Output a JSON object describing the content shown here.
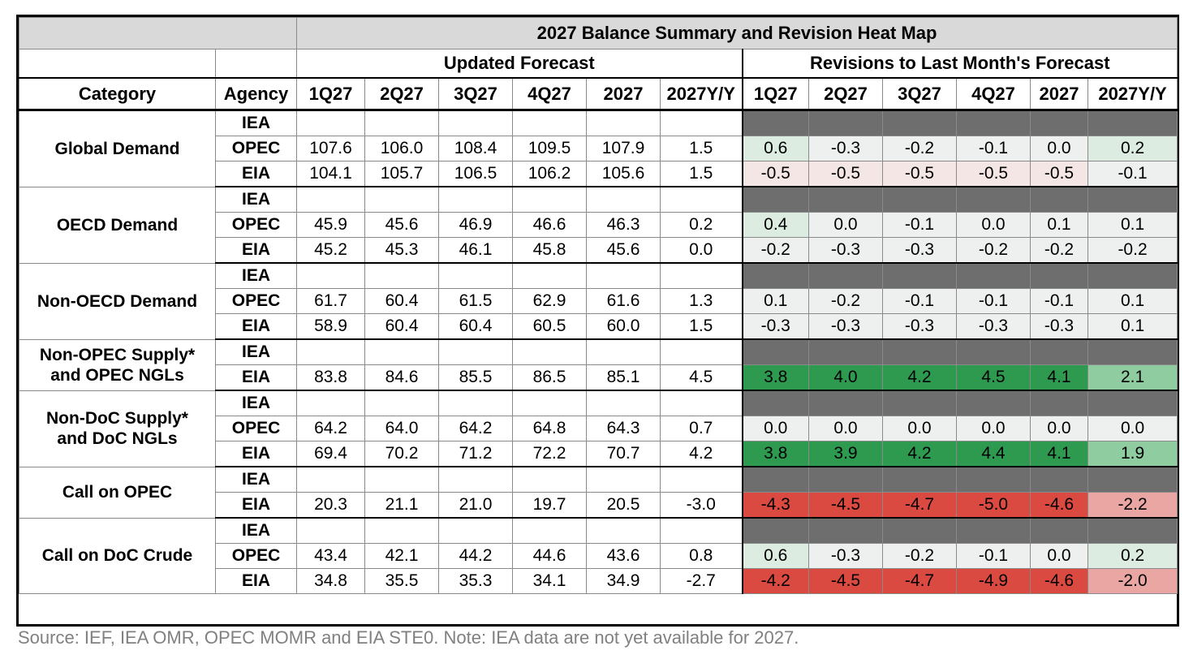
{
  "title": "2027 Balance Summary and Revision Heat Map",
  "groups": {
    "forecast": "Updated Forecast",
    "revisions": "Revisions to Last Month's Forecast"
  },
  "headers": {
    "category": "Category",
    "agency": "Agency",
    "periods": [
      "1Q27",
      "2Q27",
      "3Q27",
      "4Q27",
      "2027",
      "2027Y/Y"
    ]
  },
  "footer": "Source: IEF, IEA OMR, OPEC MOMR and EIA STE0. Note: IEA data are not yet available for 2027.",
  "colors": {
    "title_bg": "#d9d9d9",
    "na_revision_bg": "#6e6e6e",
    "strong_green": "#2e9a4f",
    "light_green": "#8fcc9f",
    "pale_green": "#dcece1",
    "neutral": "#eef0ef",
    "pale_red": "#f4e6e4",
    "strong_red": "#db4a40",
    "light_red": "#eaa6a2"
  },
  "chart_data": {
    "type": "heatmap",
    "title": "2027 Balance Summary and Revision Heat Map",
    "columns": [
      "1Q27",
      "2Q27",
      "3Q27",
      "4Q27",
      "2027",
      "2027Y/Y"
    ],
    "categories": [
      {
        "name": "Global Demand",
        "rows": [
          {
            "agency": "IEA",
            "forecast": [
              "",
              "",
              "",
              "",
              "",
              ""
            ],
            "revisions": null
          },
          {
            "agency": "OPEC",
            "forecast": [
              "107.6",
              "106.0",
              "108.4",
              "109.5",
              "107.9",
              "1.5"
            ],
            "revisions": [
              "0.6",
              "-0.3",
              "-0.2",
              "-0.1",
              "0.0",
              "0.2"
            ]
          },
          {
            "agency": "EIA",
            "forecast": [
              "104.1",
              "105.7",
              "106.5",
              "106.2",
              "105.6",
              "1.5"
            ],
            "revisions": [
              "-0.5",
              "-0.5",
              "-0.5",
              "-0.5",
              "-0.5",
              "-0.1"
            ]
          }
        ]
      },
      {
        "name": "OECD Demand",
        "rows": [
          {
            "agency": "IEA",
            "forecast": [
              "",
              "",
              "",
              "",
              "",
              ""
            ],
            "revisions": null
          },
          {
            "agency": "OPEC",
            "forecast": [
              "45.9",
              "45.6",
              "46.9",
              "46.6",
              "46.3",
              "0.2"
            ],
            "revisions": [
              "0.4",
              "0.0",
              "-0.1",
              "0.0",
              "0.1",
              "0.1"
            ]
          },
          {
            "agency": "EIA",
            "forecast": [
              "45.2",
              "45.3",
              "46.1",
              "45.8",
              "45.6",
              "0.0"
            ],
            "revisions": [
              "-0.2",
              "-0.3",
              "-0.3",
              "-0.2",
              "-0.2",
              "-0.2"
            ]
          }
        ]
      },
      {
        "name": "Non-OECD Demand",
        "rows": [
          {
            "agency": "IEA",
            "forecast": [
              "",
              "",
              "",
              "",
              "",
              ""
            ],
            "revisions": null
          },
          {
            "agency": "OPEC",
            "forecast": [
              "61.7",
              "60.4",
              "61.5",
              "62.9",
              "61.6",
              "1.3"
            ],
            "revisions": [
              "0.1",
              "-0.2",
              "-0.1",
              "-0.1",
              "-0.1",
              "0.1"
            ]
          },
          {
            "agency": "EIA",
            "forecast": [
              "58.9",
              "60.4",
              "60.4",
              "60.5",
              "60.0",
              "1.5"
            ],
            "revisions": [
              "-0.3",
              "-0.3",
              "-0.3",
              "-0.3",
              "-0.3",
              "0.1"
            ]
          }
        ]
      },
      {
        "name": "Non-OPEC Supply* and OPEC NGLs",
        "rows": [
          {
            "agency": "IEA",
            "forecast": [
              "",
              "",
              "",
              "",
              "",
              ""
            ],
            "revisions": null
          },
          {
            "agency": "EIA",
            "forecast": [
              "83.8",
              "84.6",
              "85.5",
              "86.5",
              "85.1",
              "4.5"
            ],
            "revisions": [
              "3.8",
              "4.0",
              "4.2",
              "4.5",
              "4.1",
              "2.1"
            ]
          }
        ]
      },
      {
        "name": "Non-DoC Supply* and DoC NGLs",
        "rows": [
          {
            "agency": "IEA",
            "forecast": [
              "",
              "",
              "",
              "",
              "",
              ""
            ],
            "revisions": null
          },
          {
            "agency": "OPEC",
            "forecast": [
              "64.2",
              "64.0",
              "64.2",
              "64.8",
              "64.3",
              "0.7"
            ],
            "revisions": [
              "0.0",
              "0.0",
              "0.0",
              "0.0",
              "0.0",
              "0.0"
            ]
          },
          {
            "agency": "EIA",
            "forecast": [
              "69.4",
              "70.2",
              "71.2",
              "72.2",
              "70.7",
              "4.2"
            ],
            "revisions": [
              "3.8",
              "3.9",
              "4.2",
              "4.4",
              "4.1",
              "1.9"
            ]
          }
        ]
      },
      {
        "name": "Call on OPEC",
        "rows": [
          {
            "agency": "IEA",
            "forecast": [
              "",
              "",
              "",
              "",
              "",
              ""
            ],
            "revisions": null
          },
          {
            "agency": "EIA",
            "forecast": [
              "20.3",
              "21.1",
              "21.0",
              "19.7",
              "20.5",
              "-3.0"
            ],
            "revisions": [
              "-4.3",
              "-4.5",
              "-4.7",
              "-5.0",
              "-4.6",
              "-2.2"
            ]
          }
        ]
      },
      {
        "name": "Call on DoC Crude",
        "rows": [
          {
            "agency": "IEA",
            "forecast": [
              "",
              "",
              "",
              "",
              "",
              ""
            ],
            "revisions": null
          },
          {
            "agency": "OPEC",
            "forecast": [
              "43.4",
              "42.1",
              "44.2",
              "44.6",
              "43.6",
              "0.8"
            ],
            "revisions": [
              "0.6",
              "-0.3",
              "-0.2",
              "-0.1",
              "0.0",
              "0.2"
            ]
          },
          {
            "agency": "EIA",
            "forecast": [
              "34.8",
              "35.5",
              "35.3",
              "34.1",
              "34.9",
              "-2.7"
            ],
            "revisions": [
              "-4.2",
              "-4.5",
              "-4.7",
              "-4.9",
              "-4.6",
              "-2.0"
            ]
          }
        ]
      }
    ]
  }
}
